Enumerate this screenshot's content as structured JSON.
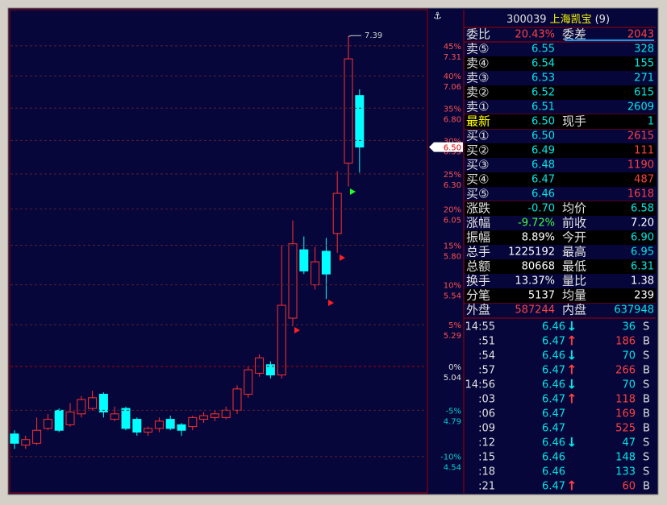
{
  "chart": {
    "type": "candlestick",
    "log_scale": true,
    "ylim": [
      4.352,
      7.623
    ],
    "yticks": [
      7.31,
      7.06,
      {
        "value": 6.8,
        "label": "6.80"
      },
      6.55,
      {
        "value": 6.3,
        "label": "6.30"
      },
      6.05,
      {
        "value": 5.8,
        "label": "5.80"
      },
      5.54,
      5.29,
      5.04,
      4.79,
      4.54
    ],
    "pct_labels": [
      "45%",
      "40%",
      "35%",
      "30%",
      "25%",
      "20%",
      "15%",
      "10%",
      "5%",
      "0%",
      "-5%",
      "-10%"
    ],
    "current": {
      "value": 6.5,
      "label": "6.50"
    },
    "up_color": "#ff3030",
    "down_color": "#00ffff",
    "candles": [
      {
        "open": 4.66,
        "high": 4.68,
        "low": 4.58,
        "close": 4.61
      },
      {
        "open": 4.6,
        "high": 4.65,
        "low": 4.58,
        "close": 4.63
      },
      {
        "open": 4.61,
        "high": 4.75,
        "low": 4.6,
        "close": 4.68
      },
      {
        "open": 4.69,
        "high": 4.77,
        "low": 4.68,
        "close": 4.74
      },
      {
        "open": 4.79,
        "high": 4.8,
        "low": 4.67,
        "close": 4.68
      },
      {
        "open": 4.71,
        "high": 4.83,
        "low": 4.7,
        "close": 4.78
      },
      {
        "open": 4.77,
        "high": 4.87,
        "low": 4.75,
        "close": 4.85
      },
      {
        "open": 4.8,
        "high": 4.9,
        "low": 4.79,
        "close": 4.86
      },
      {
        "open": 4.88,
        "high": 4.89,
        "low": 4.75,
        "close": 4.78
      },
      {
        "open": 4.74,
        "high": 4.81,
        "low": 4.73,
        "close": 4.77
      },
      {
        "open": 4.8,
        "high": 4.81,
        "low": 4.68,
        "close": 4.69
      },
      {
        "open": 4.74,
        "high": 4.75,
        "low": 4.65,
        "close": 4.67
      },
      {
        "open": 4.67,
        "high": 4.7,
        "low": 4.65,
        "close": 4.69
      },
      {
        "open": 4.69,
        "high": 4.75,
        "low": 4.67,
        "close": 4.73
      },
      {
        "open": 4.74,
        "high": 4.76,
        "low": 4.68,
        "close": 4.69
      },
      {
        "open": 4.71,
        "high": 4.72,
        "low": 4.65,
        "close": 4.68
      },
      {
        "open": 4.7,
        "high": 4.76,
        "low": 4.68,
        "close": 4.75
      },
      {
        "open": 4.74,
        "high": 4.78,
        "low": 4.72,
        "close": 4.76
      },
      {
        "open": 4.75,
        "high": 4.79,
        "low": 4.73,
        "close": 4.77
      },
      {
        "open": 4.75,
        "high": 4.81,
        "low": 4.74,
        "close": 4.79
      },
      {
        "open": 4.79,
        "high": 4.93,
        "low": 4.77,
        "close": 4.91
      },
      {
        "open": 4.88,
        "high": 5.04,
        "low": 4.86,
        "close": 5.02
      },
      {
        "open": 5.0,
        "high": 5.11,
        "low": 4.98,
        "close": 5.09
      },
      {
        "open": 5.05,
        "high": 5.07,
        "low": 4.97,
        "close": 4.99
      },
      {
        "open": 4.99,
        "high": 5.8,
        "low": 4.97,
        "close": 5.41
      },
      {
        "open": 5.33,
        "high": 5.97,
        "low": 5.28,
        "close": 5.81
      },
      {
        "open": 5.77,
        "high": 5.86,
        "low": 5.61,
        "close": 5.63
      },
      {
        "open": 5.54,
        "high": 5.79,
        "low": 5.51,
        "close": 5.69
      },
      {
        "open": 5.76,
        "high": 5.85,
        "low": 5.45,
        "close": 5.61
      },
      {
        "open": 5.88,
        "high": 6.32,
        "low": 5.75,
        "close": 6.16
      },
      {
        "open": 6.38,
        "high": 7.39,
        "low": 6.21,
        "close": 7.2
      },
      {
        "open": 6.9,
        "high": 6.95,
        "low": 6.31,
        "close": 6.5
      }
    ]
  },
  "quote": {
    "code": "300039",
    "name": "上海凯宝",
    "suffix": "(9)",
    "rows": [
      {
        "label": "委比",
        "value": "20.43%",
        "value_color": "#ff4040",
        "label2": "委差",
        "value2": "2043",
        "value2_color": "#ff4040"
      },
      {
        "label": "卖⑤",
        "value": "6.55",
        "value_color": "#00e8e8",
        "value2": "328",
        "value2_color": "#00e8e8"
      },
      {
        "label": "卖④",
        "value": "6.54",
        "value_color": "#00e8e8",
        "value2": "155",
        "value2_color": "#00e8e8"
      },
      {
        "label": "卖③",
        "value": "6.53",
        "value_color": "#00e8e8",
        "value2": "271",
        "value2_color": "#00e8e8"
      },
      {
        "label": "卖②",
        "value": "6.52",
        "value_color": "#00e8e8",
        "value2": "615",
        "value2_color": "#00e8e8"
      },
      {
        "label": "卖①",
        "value": "6.51",
        "value_color": "#00e8e8",
        "value2": "2609",
        "value2_color": "#00e8e8"
      },
      {
        "label": "最新",
        "label_color": "#ffff00",
        "value": "6.50",
        "value_color": "#00e8e8",
        "label2": "现手",
        "value2": "1",
        "value2_color": "#00e8e8"
      },
      {
        "label": "买①",
        "value": "6.50",
        "value_color": "#00e8e8",
        "value2": "2615",
        "value2_color": "#ff4040"
      },
      {
        "label": "买②",
        "value": "6.49",
        "value_color": "#00e8e8",
        "value2": "111",
        "value2_color": "#ff4040"
      },
      {
        "label": "买③",
        "value": "6.48",
        "value_color": "#00e8e8",
        "value2": "1190",
        "value2_color": "#ff4040"
      },
      {
        "label": "买④",
        "value": "6.47",
        "value_color": "#00e8e8",
        "value2": "487",
        "value2_color": "#ff4040"
      },
      {
        "label": "买⑤",
        "value": "6.46",
        "value_color": "#00e8e8",
        "value2": "1618",
        "value2_color": "#ff4040"
      },
      {
        "label": "涨跌",
        "value": "-0.70",
        "value_color": "#00e8e8",
        "label2": "均价",
        "value2": "6.58",
        "value2_color": "#00e8e8"
      },
      {
        "label": "涨幅",
        "value": "-9.72%",
        "value_color": "#40ff40",
        "label2": "前收",
        "value2": "7.20",
        "value2_color": "#ffffff"
      },
      {
        "label": "振幅",
        "value": "8.89%",
        "value_color": "#ffffff",
        "label2": "今开",
        "value2": "6.90",
        "value2_color": "#00e8e8"
      },
      {
        "label": "总手",
        "value": "1225192",
        "value_color": "#ffffff",
        "label2": "最高",
        "value2": "6.95",
        "value2_color": "#00e8e8"
      },
      {
        "label": "总额",
        "value": "80668",
        "value_color": "#ffffff",
        "label2": "最低",
        "value2": "6.31",
        "value2_color": "#00e8e8"
      },
      {
        "label": "换手",
        "value": "13.37%",
        "value_color": "#ffffff",
        "label2": "量比",
        "value2": "1.38",
        "value2_color": "#ffffff"
      },
      {
        "label": "分笔",
        "value": "5137",
        "value_color": "#ffffff",
        "label2": "均量",
        "value2": "239",
        "value2_color": "#ffffff"
      },
      {
        "label": "外盘",
        "value": "587244",
        "value_color": "#ff4040",
        "label2": "内盘",
        "value2": "637948",
        "value2_color": "#00e8e8"
      }
    ]
  },
  "ticks": [
    {
      "time": "14:55",
      "price": "6.46",
      "arrow": "↓",
      "volume": "36",
      "side": "S"
    },
    {
      "time": ":51",
      "price": "6.47",
      "arrow": "↑",
      "volume": "186",
      "side": "B"
    },
    {
      "time": ":54",
      "price": "6.46",
      "arrow": "↓",
      "volume": "70",
      "side": "S"
    },
    {
      "time": ":57",
      "price": "6.47",
      "arrow": "↑",
      "volume": "266",
      "side": "B"
    },
    {
      "time": "14:56",
      "price": "6.46",
      "arrow": "↓",
      "volume": "70",
      "side": "S"
    },
    {
      "time": ":03",
      "price": "6.47",
      "arrow": "↑",
      "volume": "118",
      "side": "B"
    },
    {
      "time": ":06",
      "price": "6.47",
      "volume": "169",
      "side": "B"
    },
    {
      "time": ":09",
      "price": "6.47",
      "volume": "525",
      "side": "B"
    },
    {
      "time": ":12",
      "price": "6.46",
      "arrow": "↓",
      "volume": "47",
      "side": "S"
    },
    {
      "time": ":15",
      "price": "6.46",
      "volume": "148",
      "side": "S"
    },
    {
      "time": ":18",
      "price": "6.46",
      "volume": "133",
      "side": "S"
    },
    {
      "time": ":21",
      "price": "6.47",
      "arrow": "↑",
      "volume": "60",
      "side": "B"
    }
  ]
}
